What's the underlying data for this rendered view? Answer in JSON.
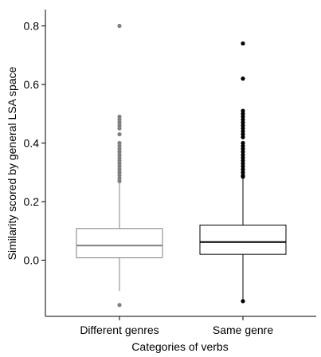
{
  "chart_data": {
    "type": "boxplot",
    "title": "",
    "xlabel": "Categories of verbs",
    "ylabel": "Similarity scored by general LSA space",
    "ylim": [
      -0.19,
      0.85
    ],
    "yticks": [
      0.0,
      0.2,
      0.4,
      0.6,
      0.8
    ],
    "ytick_labels": [
      "0.0",
      "0.2",
      "0.4",
      "0.6",
      "0.8"
    ],
    "grid": false,
    "categories": [
      "Different genres",
      "Same genre"
    ],
    "series": [
      {
        "category": "Different genres",
        "color": "#808080",
        "whisker_low": -0.105,
        "q1": 0.008,
        "median": 0.05,
        "q3": 0.108,
        "whisker_high": 0.265,
        "outliers": [
          -0.153,
          0.27,
          0.28,
          0.29,
          0.3,
          0.31,
          0.32,
          0.33,
          0.34,
          0.35,
          0.36,
          0.37,
          0.38,
          0.39,
          0.4,
          0.43,
          0.45,
          0.46,
          0.47,
          0.48,
          0.49,
          0.8
        ]
      },
      {
        "category": "Same genre",
        "color": "#000000",
        "whisker_low": -0.14,
        "q1": 0.02,
        "median": 0.062,
        "q3": 0.12,
        "whisker_high": 0.28,
        "outliers": [
          -0.14,
          0.285,
          0.29,
          0.3,
          0.31,
          0.32,
          0.33,
          0.34,
          0.35,
          0.36,
          0.37,
          0.38,
          0.39,
          0.4,
          0.42,
          0.43,
          0.44,
          0.45,
          0.46,
          0.47,
          0.48,
          0.49,
          0.5,
          0.51,
          0.62,
          0.74
        ]
      }
    ]
  }
}
